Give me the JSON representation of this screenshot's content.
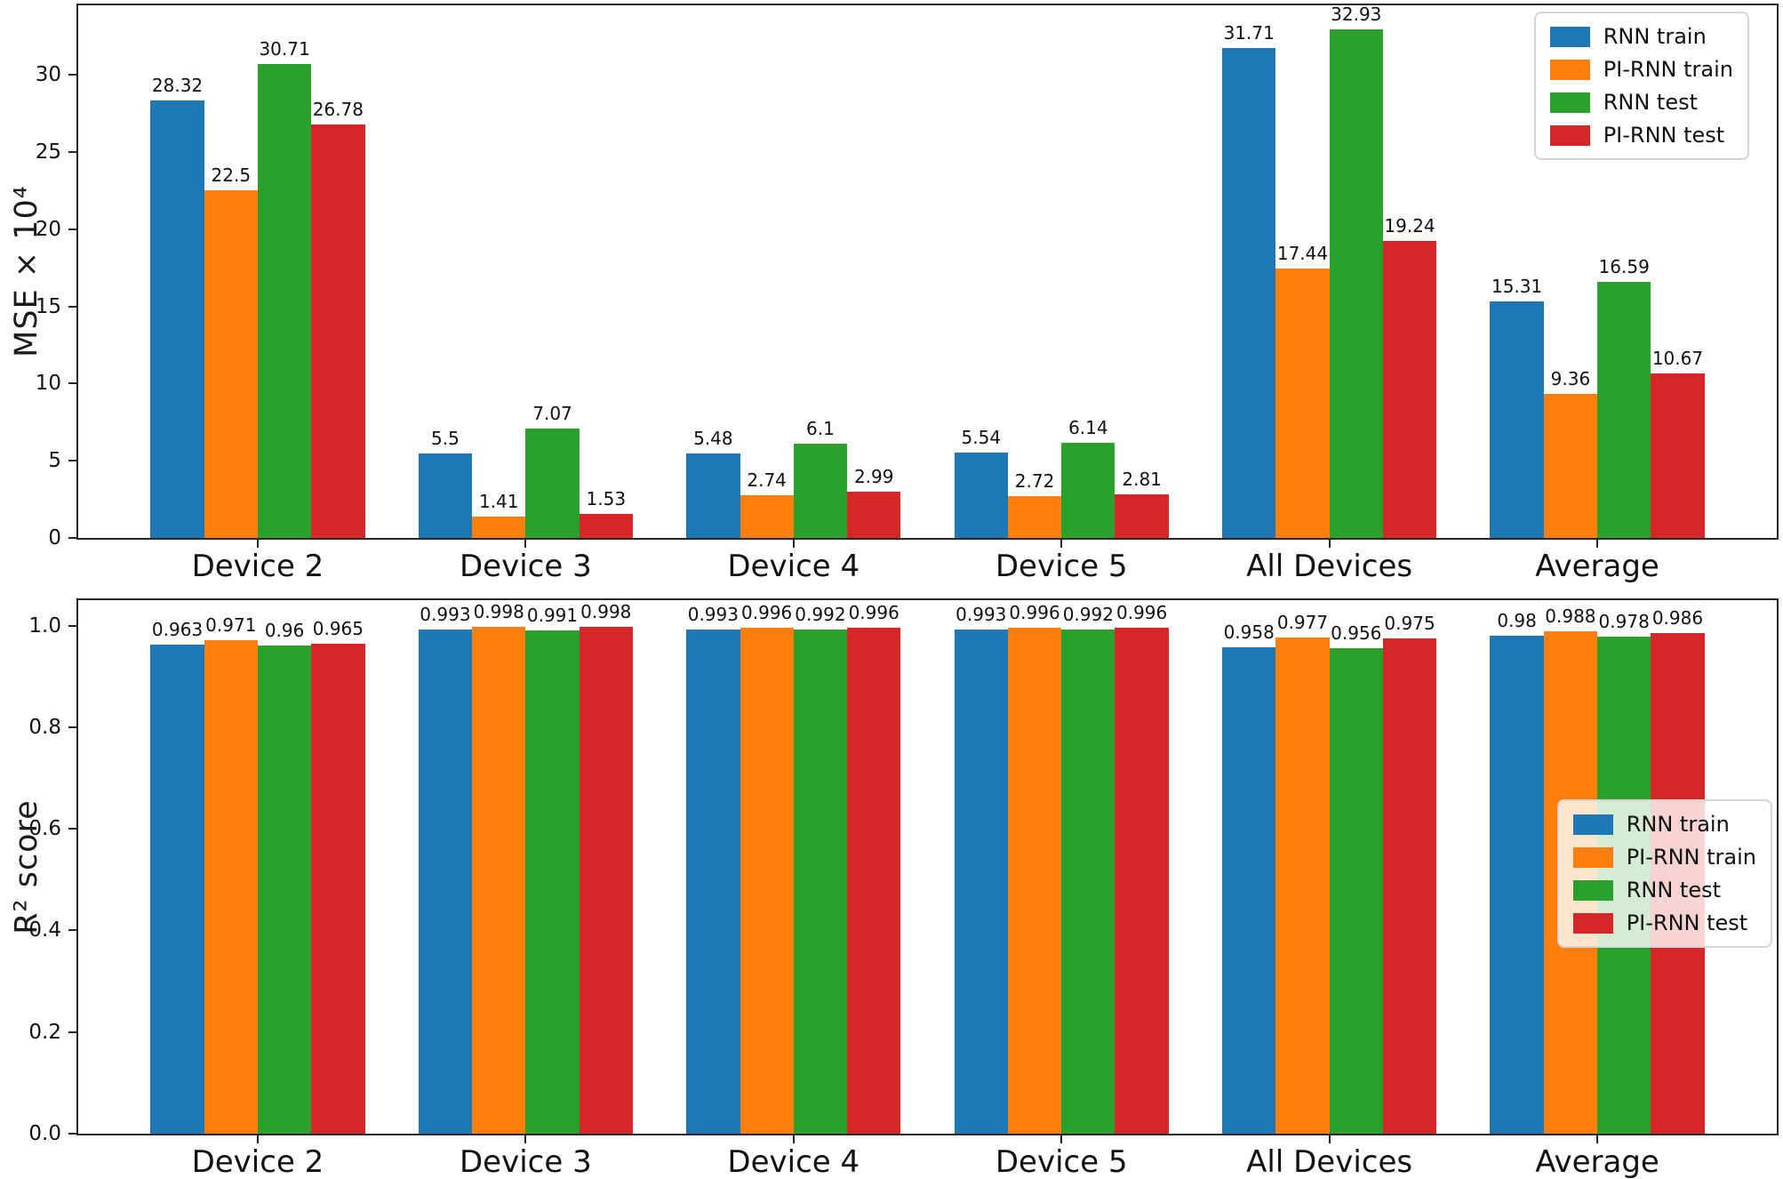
{
  "figure": {
    "background": "#ffffff",
    "text_color": "#111111",
    "spine_color": "#262626"
  },
  "chart_data": [
    {
      "type": "bar",
      "title": "",
      "xlabel": "",
      "ylabel": "MSE × 10⁴",
      "categories": [
        "Device 2",
        "Device 3",
        "Device 4",
        "Device 5",
        "All Devices",
        "Average"
      ],
      "series": [
        {
          "name": "RNN train",
          "color": "#1f77b4",
          "values": [
            28.32,
            5.5,
            5.48,
            5.54,
            31.71,
            15.31
          ]
        },
        {
          "name": "PI-RNN train",
          "color": "#ff7f0e",
          "values": [
            22.5,
            1.41,
            2.74,
            2.72,
            17.44,
            9.36
          ]
        },
        {
          "name": "RNN test",
          "color": "#2ca02c",
          "values": [
            30.71,
            7.07,
            6.1,
            6.14,
            32.93,
            16.59
          ]
        },
        {
          "name": "PI-RNN test",
          "color": "#d62728",
          "values": [
            26.78,
            1.53,
            2.99,
            2.81,
            19.24,
            10.67
          ]
        }
      ],
      "bar_width": 0.2,
      "xlim": [
        -0.67,
        5.67
      ],
      "ylim": [
        0,
        34.5
      ],
      "yticks": {
        "values": [
          0,
          5,
          10,
          15,
          20,
          25,
          30
        ],
        "labels": [
          "0",
          "5",
          "10",
          "15",
          "20",
          "25",
          "30"
        ]
      },
      "grid": false,
      "value_labels_shown": true,
      "legend": {
        "location": "upper right",
        "entries": [
          "RNN train",
          "PI-RNN train",
          "RNN test",
          "PI-RNN test"
        ]
      }
    },
    {
      "type": "bar",
      "title": "",
      "xlabel": "",
      "ylabel": "R² score",
      "categories": [
        "Device 2",
        "Device 3",
        "Device 4",
        "Device 5",
        "All Devices",
        "Average"
      ],
      "series": [
        {
          "name": "RNN train",
          "color": "#1f77b4",
          "values": [
            0.963,
            0.993,
            0.993,
            0.993,
            0.958,
            0.98
          ]
        },
        {
          "name": "PI-RNN train",
          "color": "#ff7f0e",
          "values": [
            0.971,
            0.998,
            0.996,
            0.996,
            0.977,
            0.988
          ]
        },
        {
          "name": "RNN test",
          "color": "#2ca02c",
          "values": [
            0.96,
            0.991,
            0.992,
            0.992,
            0.956,
            0.978
          ]
        },
        {
          "name": "PI-RNN test",
          "color": "#d62728",
          "values": [
            0.965,
            0.998,
            0.996,
            0.996,
            0.975,
            0.986
          ]
        }
      ],
      "bar_width": 0.2,
      "xlim": [
        -0.67,
        5.67
      ],
      "ylim": [
        0,
        1.05
      ],
      "yticks": {
        "values": [
          0,
          0.2,
          0.4,
          0.6,
          0.8,
          1.0
        ],
        "labels": [
          "0.0",
          "0.2",
          "0.4",
          "0.6",
          "0.8",
          "1.0"
        ]
      },
      "grid": false,
      "value_labels_shown": true,
      "legend": {
        "location": "center right",
        "entries": [
          "RNN train",
          "PI-RNN train",
          "RNN test",
          "PI-RNN test"
        ]
      }
    }
  ]
}
